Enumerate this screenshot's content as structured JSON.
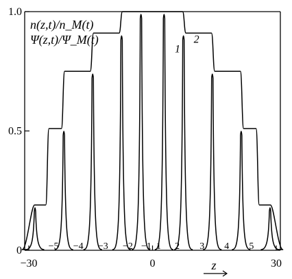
{
  "chart_data": {
    "type": "line",
    "ylabel_lines": [
      "n(z,t)/n_M(t)",
      "Ψ(z,t)/Ψ_M(t)"
    ],
    "xlabel": "z",
    "xlim": [
      -31,
      31
    ],
    "ylim": [
      0,
      1.0
    ],
    "x_ticks": [
      -30,
      0,
      30
    ],
    "y_ticks": [
      0,
      0.5,
      1.0
    ],
    "x_tick_labels": [
      "−30",
      "0",
      "30"
    ],
    "y_tick_labels": [
      "0",
      "0.5",
      "1.0"
    ],
    "curve_numbers": [
      "−5",
      "−4",
      "−3",
      "−2",
      "−1",
      "1",
      "2",
      "3",
      "4",
      "5"
    ],
    "curve_number_positions": [
      -24,
      -18,
      -12,
      -6,
      -1.5,
      1.5,
      6,
      12,
      18,
      24
    ],
    "series": [
      {
        "name": "1",
        "peak_positions": [
          -28.5,
          -21.5,
          -14.5,
          -7.5,
          -2.8,
          2.8,
          7.5,
          14.5,
          21.5,
          28.5
        ],
        "peak_heights": [
          0.19,
          0.51,
          0.75,
          0.91,
          1.0,
          1.0,
          0.91,
          0.75,
          0.51,
          0.19
        ]
      },
      {
        "name": "2",
        "x": [
          -28.6,
          -25.9,
          -25.1,
          -22.1,
          -21.3,
          -15.1,
          -14.3,
          -8.1,
          -7.3,
          -3.3,
          -2.9,
          2.9,
          3.3,
          7.3,
          8.1,
          14.3,
          15.1,
          21.3,
          22.1,
          25.1,
          25.9,
          28.6
        ],
        "y": [
          0.19,
          0.19,
          0.51,
          0.51,
          0.75,
          0.75,
          0.91,
          0.91,
          1.0,
          1.0,
          1.0,
          1.0,
          1.0,
          1.0,
          0.91,
          0.91,
          0.75,
          0.75,
          0.51,
          0.51,
          0.19,
          0.19
        ]
      }
    ],
    "grid": false,
    "legend": "none"
  }
}
